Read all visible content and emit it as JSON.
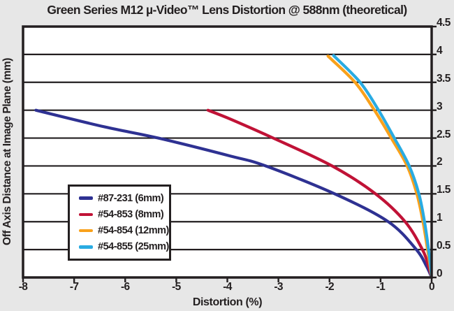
{
  "page": {
    "background": "#e7e7e7",
    "text_color": "#231f20"
  },
  "chart_data": {
    "type": "line",
    "title": "Green Series M12 µ-Video™ Lens Distortion @ 588nm (theoretical)",
    "xlabel": "Distortion (%)",
    "ylabel": "Off Axis Distance at Image Plane (mm)",
    "xlim": [
      -8,
      0
    ],
    "ylim": [
      0,
      4.5
    ],
    "x_tick_values": [
      -8,
      -7,
      -6,
      -5,
      -4,
      -3,
      -2,
      -1,
      0
    ],
    "x_tick_labels": [
      "-8",
      "-7",
      "-6",
      "-5",
      "-4",
      "-3",
      "-2",
      "-1",
      "0"
    ],
    "y_tick_values": [
      0,
      0.5,
      1,
      1.5,
      2,
      2.5,
      3,
      3.5,
      4,
      4.5
    ],
    "y_tick_labels": [
      "0",
      "0.5",
      "1",
      "1.5",
      "2",
      "2.5",
      "3",
      "3.5",
      "4",
      "4.5"
    ],
    "y_axis_side": "right",
    "grid": "horizontal-only",
    "plot_background": "#ffffff",
    "axis_color": "#231f20",
    "legend_position": "inside-lower-left",
    "series": [
      {
        "name": "#87-231 (6mm)",
        "color": "#2e3192",
        "points": [
          [
            -7.75,
            3.0
          ],
          [
            -6.4,
            2.7
          ],
          [
            -5.35,
            2.5
          ],
          [
            -3.95,
            2.18
          ],
          [
            -3.25,
            2.0
          ],
          [
            -1.9,
            1.5
          ],
          [
            -0.85,
            1.0
          ],
          [
            -0.3,
            0.5
          ],
          [
            -0.1,
            0.2
          ],
          [
            0,
            0
          ]
        ]
      },
      {
        "name": "#54-853 (8mm)",
        "color": "#c01236",
        "points": [
          [
            -4.38,
            3.0
          ],
          [
            -3.94,
            2.84
          ],
          [
            -3.1,
            2.5
          ],
          [
            -1.95,
            2.0
          ],
          [
            -1.1,
            1.5
          ],
          [
            -0.52,
            1.0
          ],
          [
            -0.18,
            0.5
          ],
          [
            -0.06,
            0.2
          ],
          [
            0,
            0
          ]
        ]
      },
      {
        "name": "#54-854 (12mm)",
        "color": "#f9a11b",
        "points": [
          [
            -2.03,
            3.97
          ],
          [
            -1.5,
            3.5
          ],
          [
            -1.12,
            3.0
          ],
          [
            -0.79,
            2.5
          ],
          [
            -0.48,
            2.0
          ],
          [
            -0.29,
            1.5
          ],
          [
            -0.17,
            1.0
          ],
          [
            -0.08,
            0.5
          ],
          [
            -0.03,
            0.2
          ],
          [
            0,
            0
          ]
        ]
      },
      {
        "name": "#54-855 (25mm)",
        "color": "#29abe2",
        "points": [
          [
            -1.92,
            3.98
          ],
          [
            -1.4,
            3.5
          ],
          [
            -1.04,
            3.0
          ],
          [
            -0.73,
            2.5
          ],
          [
            -0.44,
            2.0
          ],
          [
            -0.25,
            1.5
          ],
          [
            -0.14,
            1.0
          ],
          [
            -0.06,
            0.5
          ],
          [
            -0.02,
            0.2
          ],
          [
            0,
            0
          ]
        ]
      }
    ]
  }
}
